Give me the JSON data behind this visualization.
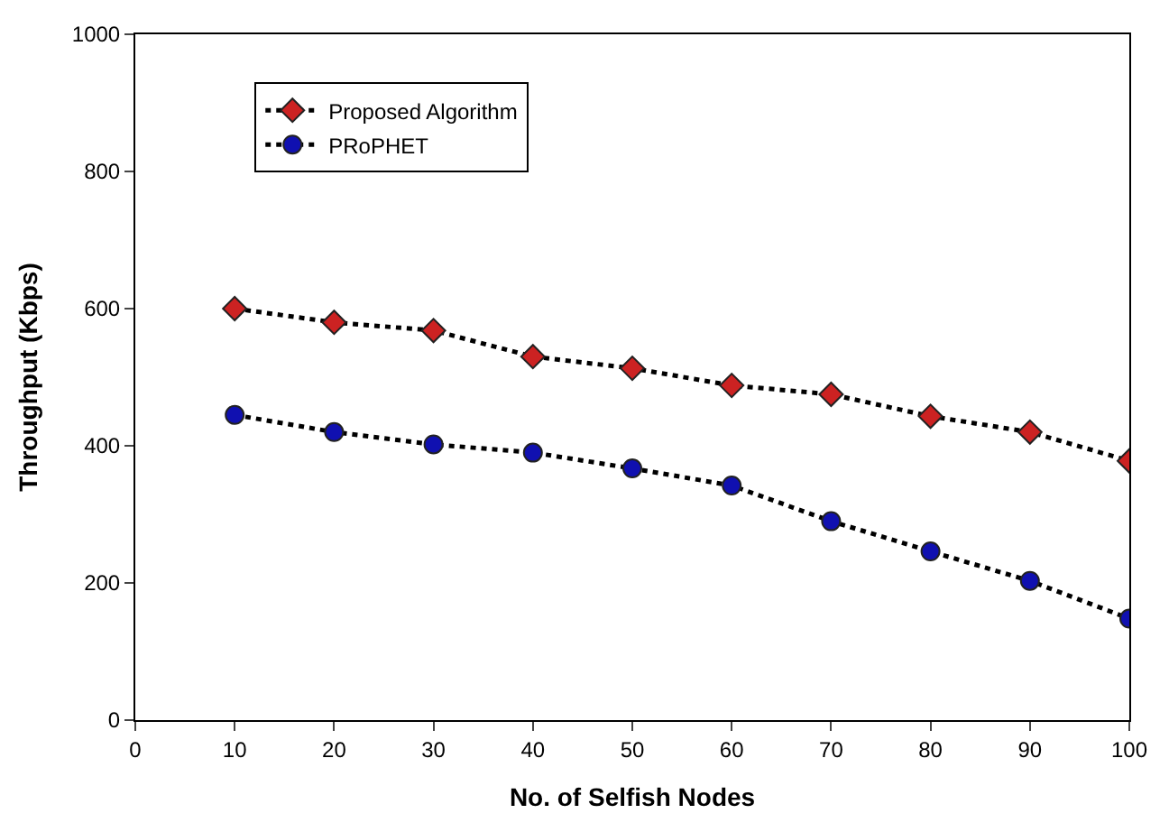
{
  "chart_data": {
    "type": "line",
    "xlabel": "No. of Selfish Nodes",
    "ylabel": "Throughput (Kbps)",
    "x": [
      10,
      20,
      30,
      40,
      50,
      60,
      70,
      80,
      90,
      100
    ],
    "series": [
      {
        "name": "Proposed Algorithm",
        "color": "#cc2222",
        "marker": "diamond",
        "values": [
          600,
          580,
          568,
          530,
          513,
          488,
          475,
          443,
          420,
          378
        ]
      },
      {
        "name": "PRoPHET",
        "color": "#1010b0",
        "marker": "circle",
        "values": [
          445,
          420,
          402,
          390,
          367,
          342,
          290,
          246,
          203,
          148
        ]
      }
    ],
    "xlim": [
      0,
      100
    ],
    "xticks": [
      0,
      10,
      20,
      30,
      40,
      50,
      60,
      70,
      80,
      90,
      100
    ],
    "ylim": [
      0,
      1000
    ],
    "yticks": [
      0,
      200,
      400,
      600,
      800,
      1000
    ],
    "line_style": "dotted",
    "legend": "top left",
    "grid": false
  }
}
